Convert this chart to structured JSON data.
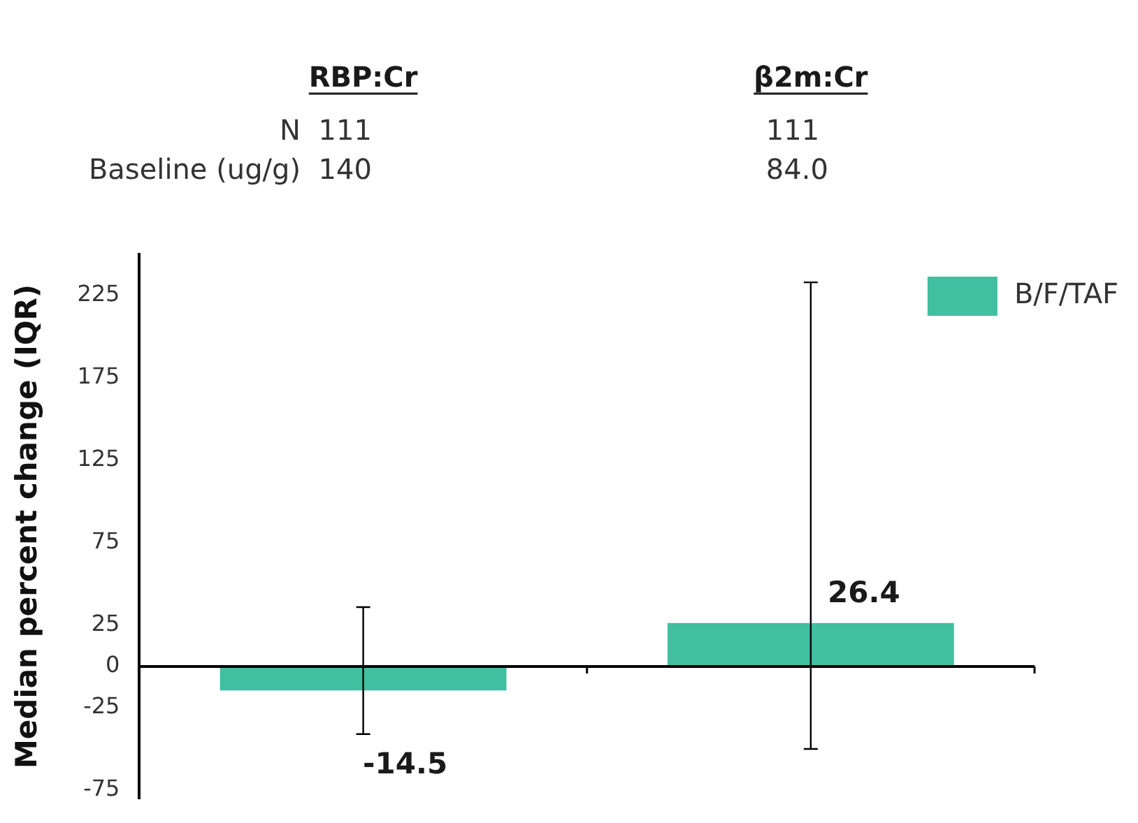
{
  "chart_data": {
    "type": "bar",
    "categories": [
      "RBP:Cr",
      "β2m:Cr"
    ],
    "series": [
      {
        "name": "B/F/TAF",
        "color": "#40c0a0",
        "values": [
          -14.5,
          26.4
        ],
        "errors": [
          [
            -41,
            36
          ],
          [
            -50,
            233
          ]
        ]
      }
    ],
    "ylabel": "Median percent change (IQR)",
    "ylim": [
      -80,
      250
    ],
    "yticks": [
      -75,
      -25,
      0,
      25,
      75,
      125,
      175,
      225
    ],
    "annotations": [
      "N",
      "111",
      "111",
      "Baseline (ug/g)",
      "140",
      "84.0"
    ],
    "data_labels": true,
    "legend": "top right",
    "grid": false
  }
}
